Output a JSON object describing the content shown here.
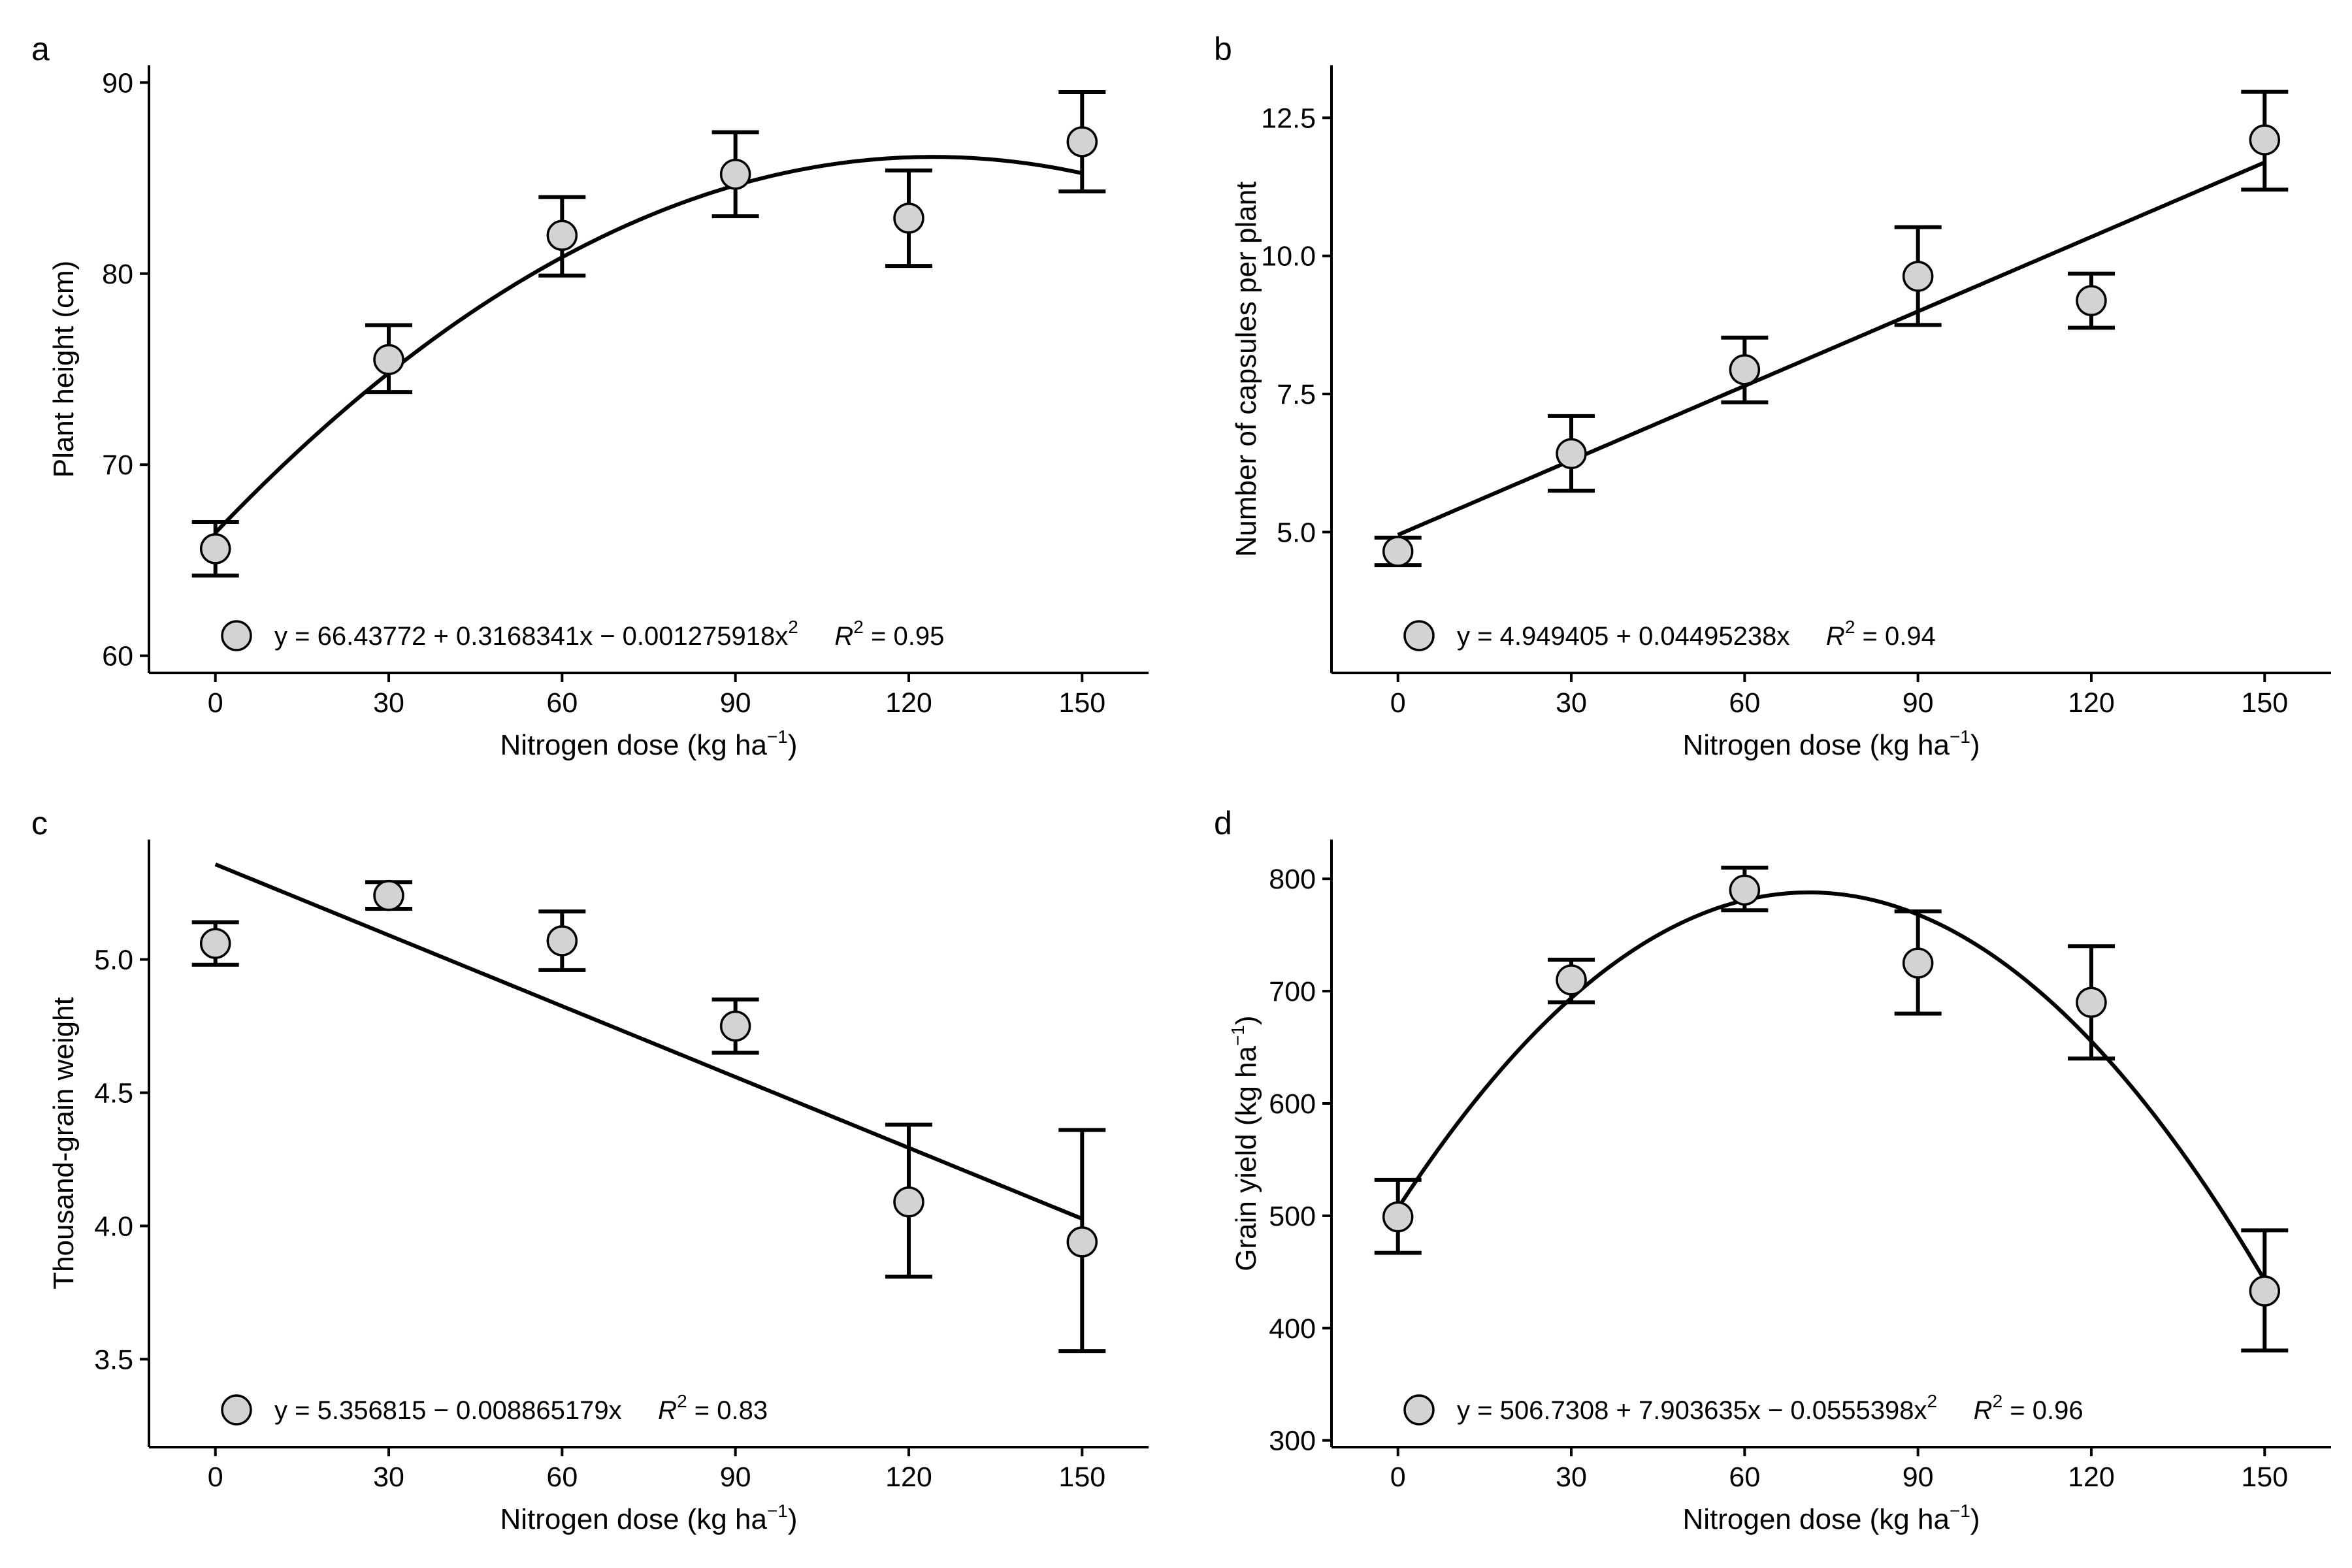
{
  "figure": {
    "colors": {
      "axis": "#000000",
      "point_fill": "#d3d3d3",
      "point_stroke": "#000000",
      "line": "#000000"
    }
  },
  "chart_data": [
    {
      "panel_label": "a",
      "type": "scatter",
      "xlabel": "Nitrogen dose (kg ha",
      "xlabel_sup": "−1",
      "xlabel_end": ")",
      "ylabel": "Plant height (cm)",
      "ylabel_sup": "",
      "ylabel_end": "",
      "x": [
        0,
        30,
        60,
        90,
        120,
        150
      ],
      "y": [
        65.6,
        75.5,
        82.0,
        85.2,
        82.9,
        86.9
      ],
      "err_low": [
        64.2,
        73.8,
        79.9,
        83.0,
        80.4,
        84.3
      ],
      "err_high": [
        67.0,
        77.3,
        84.0,
        87.4,
        85.4,
        89.5
      ],
      "x_ticks": [
        0,
        30,
        60,
        90,
        120,
        150
      ],
      "y_ticks": [
        60,
        70,
        80,
        90
      ],
      "xlim": [
        -11.5,
        161.5
      ],
      "ylim": [
        59.1,
        90.9
      ],
      "fit": {
        "kind": "quadratic",
        "coef": [
          66.43772,
          0.3168341,
          -0.001275918
        ]
      },
      "legend_position": "bottom-left",
      "equation": "y = 66.43772 + 0.3168341x − 0.001275918x",
      "equation_sup": "2",
      "r2_label": "R",
      "r2_sup": "2",
      "r2_value": " = 0.95"
    },
    {
      "panel_label": "b",
      "type": "scatter",
      "xlabel": "Nitrogen dose (kg ha",
      "xlabel_sup": "−1",
      "xlabel_end": ")",
      "ylabel": "Number of capsules per plant",
      "ylabel_sup": "",
      "ylabel_end": "",
      "x": [
        0,
        30,
        60,
        90,
        120,
        150
      ],
      "y": [
        4.65,
        6.42,
        7.94,
        9.63,
        9.19,
        12.1
      ],
      "err_low": [
        4.4,
        5.75,
        7.35,
        8.75,
        8.7,
        11.2
      ],
      "err_high": [
        4.9,
        7.1,
        8.52,
        10.52,
        9.68,
        12.97
      ],
      "x_ticks": [
        0,
        30,
        60,
        90,
        120,
        150
      ],
      "y_ticks": [
        5.0,
        7.5,
        10.0,
        12.5
      ],
      "y_tick_labels": [
        "5.0",
        "7.5",
        "10.0",
        "12.5"
      ],
      "xlim": [
        -11.5,
        161.5
      ],
      "ylim": [
        2.45,
        13.45
      ],
      "fit": {
        "kind": "linear",
        "coef": [
          4.949405,
          0.04495238
        ]
      },
      "legend_position": "bottom-left",
      "equation": "y = 4.949405 + 0.04495238x",
      "equation_sup": "",
      "r2_label": "R",
      "r2_sup": "2",
      "r2_value": " = 0.94"
    },
    {
      "panel_label": "c",
      "type": "scatter",
      "xlabel": "Nitrogen dose (kg ha",
      "xlabel_sup": "−1",
      "xlabel_end": ")",
      "ylabel": "Thousand-grain weight",
      "ylabel_sup": "",
      "ylabel_end": "",
      "x": [
        0,
        30,
        60,
        90,
        120,
        150
      ],
      "y": [
        5.06,
        5.24,
        5.07,
        4.75,
        4.09,
        3.94
      ],
      "err_low": [
        4.98,
        5.19,
        4.96,
        4.65,
        3.81,
        3.53
      ],
      "err_high": [
        5.14,
        5.29,
        5.18,
        4.85,
        4.38,
        4.36
      ],
      "x_ticks": [
        0,
        30,
        60,
        90,
        120,
        150
      ],
      "y_ticks": [
        3.5,
        4.0,
        4.5,
        5.0
      ],
      "y_tick_labels": [
        "3.5",
        "4.0",
        "4.5",
        "5.0"
      ],
      "xlim": [
        -11.5,
        161.5
      ],
      "ylim": [
        3.17,
        5.45
      ],
      "fit": {
        "kind": "linear",
        "coef": [
          5.356815,
          -0.008865179
        ]
      },
      "legend_position": "bottom-left",
      "equation": "y = 5.356815 − 0.008865179x",
      "equation_sup": "",
      "r2_label": "R",
      "r2_sup": "2",
      "r2_value": " = 0.83"
    },
    {
      "panel_label": "d",
      "type": "scatter",
      "xlabel": "Nitrogen dose (kg ha",
      "xlabel_sup": "−1",
      "xlabel_end": ")",
      "ylabel": "Grain yield (kg ha",
      "ylabel_sup": "−1",
      "ylabel_end": ")",
      "x": [
        0,
        30,
        60,
        90,
        120,
        150
      ],
      "y": [
        499,
        710,
        790,
        725,
        690,
        433
      ],
      "err_low": [
        467,
        690,
        772,
        680,
        640,
        380
      ],
      "err_high": [
        532,
        728,
        810,
        771,
        740,
        487
      ],
      "x_ticks": [
        0,
        30,
        60,
        90,
        120,
        150
      ],
      "y_ticks": [
        300,
        400,
        500,
        600,
        700,
        800
      ],
      "xlim": [
        -11.5,
        161.5
      ],
      "ylim": [
        294,
        835
      ],
      "fit": {
        "kind": "quadratic",
        "coef": [
          506.7308,
          7.903635,
          -0.0555398
        ]
      },
      "legend_position": "bottom-left",
      "equation": "y = 506.7308 + 7.903635x − 0.0555398x",
      "equation_sup": "2",
      "r2_label": "R",
      "r2_sup": "2",
      "r2_value": " = 0.96"
    }
  ]
}
